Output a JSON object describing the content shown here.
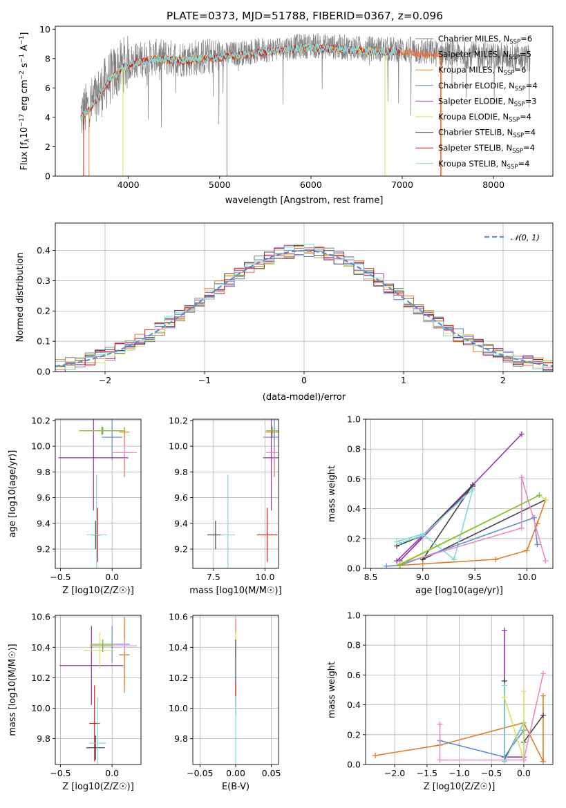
{
  "figure_title": "PLATE=0373, MJD=51788, FIBERID=0367, z=0.096",
  "colors": {
    "cm": "#7f7f7f",
    "sm": "#e96a60",
    "km": "#e07b21",
    "ce": "#5b8ccf",
    "se": "#9b30b0",
    "ke": "#d4e35e",
    "cs": "#444444",
    "ss": "#cc1a1a",
    "ks": "#7fd9d9",
    "pink": "#e88bc4",
    "green": "#7fc12a",
    "normal": "#5b8ccf"
  },
  "chart_data": [
    {
      "id": "spectrum",
      "type": "line",
      "xlabel": "wavelength [Angstrom, rest frame]",
      "ylabel": "Flux [f",
      "ylabel_parts": [
        "Flux [f",
        "λ",
        "10",
        "−17",
        " erg cm",
        "−2",
        " s",
        "−1",
        " A",
        "−1",
        "]"
      ],
      "xlim": [
        3200,
        8650
      ],
      "ylim": [
        0,
        10.2
      ],
      "xticks": [
        4000,
        5000,
        6000,
        7000,
        8000
      ],
      "yticks": [
        0,
        2,
        4,
        6,
        8,
        10
      ],
      "legend_position": "right",
      "legend": [
        {
          "pre": "Chabrier MILES, N",
          "sub": "SSP",
          "post": "=6",
          "color": "cm"
        },
        {
          "pre": "Salpeter MILES, N",
          "sub": "SSP",
          "post": "=5",
          "color": "sm"
        },
        {
          "pre": "Kroupa MILES, N",
          "sub": "SSP",
          "post": "=6",
          "color": "km"
        },
        {
          "pre": "Chabrier ELODIE, N",
          "sub": "SSP",
          "post": "=4",
          "color": "ce"
        },
        {
          "pre": "Salpeter ELODIE, N",
          "sub": "SSP",
          "post": "=3",
          "color": "se"
        },
        {
          "pre": "Kroupa ELODIE, N",
          "sub": "SSP",
          "post": "=4",
          "color": "ke"
        },
        {
          "pre": "Chabrier STELIB, N",
          "sub": "SSP",
          "post": "=4",
          "color": "cs"
        },
        {
          "pre": "Salpeter STELIB, N",
          "sub": "SSP",
          "post": "=4",
          "color": "ss"
        },
        {
          "pre": "Kroupa STELIB, N",
          "sub": "SSP",
          "post": "=4",
          "color": "ks"
        }
      ],
      "continuum_x": [
        3480,
        3600,
        3800,
        3950,
        4100,
        4300,
        4600,
        5000,
        5500,
        6000,
        6500,
        7000,
        7500,
        8000,
        8400
      ],
      "continuum_y": [
        4.1,
        4.9,
        6.7,
        7.6,
        7.9,
        8.1,
        8.0,
        8.2,
        8.6,
        8.9,
        8.7,
        8.6,
        8.3,
        8.2,
        8.0
      ]
    },
    {
      "id": "residuals",
      "type": "histogram",
      "xlabel": "(data-model)/error",
      "ylabel": "Normed distribution",
      "xlim": [
        -2.5,
        2.5
      ],
      "ylim": [
        0,
        0.49
      ],
      "xticks": [
        -2,
        -1,
        0,
        1,
        2
      ],
      "xtick_labels": [
        "−2",
        "−1",
        "0",
        "1",
        "2"
      ],
      "yticks": [
        0.0,
        0.1,
        0.2,
        0.3,
        0.4
      ],
      "ytick_labels": [
        "0.0",
        "0.1",
        "0.2",
        "0.3",
        "0.4"
      ],
      "bin_width": 0.1,
      "legend_label": "𝒩(0, 1)",
      "legend_position": "top-right"
    },
    {
      "id": "age-vs-Z",
      "type": "scatter",
      "xlabel": "Z [log10(Z/Z☉)]",
      "ylabel": "age [log10(age/yr)]",
      "xlim": [
        -0.55,
        0.28
      ],
      "ylim": [
        9.05,
        10.21
      ],
      "xticks": [
        -0.5,
        0.0
      ],
      "xtick_labels": [
        "−0.5",
        "0.0"
      ],
      "yticks": [
        9.2,
        9.4,
        9.6,
        9.8,
        10.0,
        10.2
      ],
      "points": [
        {
          "color": "cm",
          "x": -0.09,
          "xerr": 0.19,
          "y": 10.12,
          "yerr": 0.03
        },
        {
          "color": "sm",
          "x": 0.12,
          "xerr": 0.08,
          "y": 9.95,
          "yerr": 0.19
        },
        {
          "color": "km",
          "x": 0.12,
          "xerr": 0.05,
          "y": 10.11,
          "yerr": 0.04
        },
        {
          "color": "ce",
          "x": 0.0,
          "xerr": 0.1,
          "y": 10.07,
          "yerr": 0.18
        },
        {
          "color": "se",
          "x": -0.18,
          "xerr": 0.34,
          "y": 9.91,
          "yerr": 0.41
        },
        {
          "color": "ke",
          "x": -0.1,
          "xerr": 0.16,
          "y": 10.12,
          "yerr": 0.04
        },
        {
          "color": "cs",
          "x": -0.16,
          "xerr": 0.04,
          "y": 9.31,
          "yerr": 0.11
        },
        {
          "color": "ss",
          "x": -0.14,
          "xerr": 0.03,
          "y": 9.31,
          "yerr": 0.21
        },
        {
          "color": "ks",
          "x": -0.15,
          "xerr": 0.1,
          "y": 9.31,
          "yerr": 0.47
        },
        {
          "color": "pink",
          "x": 0.12,
          "xerr": 0.12,
          "y": 9.95,
          "yerr": 0.05
        },
        {
          "color": "green",
          "x": -0.1,
          "xerr": 0.22,
          "y": 10.12,
          "yerr": 0.03
        }
      ]
    },
    {
      "id": "age-vs-mass",
      "type": "scatter",
      "xlabel": "mass [log10(M/M☉)]",
      "ylabel": "",
      "xlim": [
        6.5,
        10.65
      ],
      "ylim": [
        9.05,
        10.21
      ],
      "xticks": [
        7.5,
        10.0
      ],
      "xtick_labels": [
        "7.5",
        "10.0"
      ],
      "yticks": [
        9.2,
        9.4,
        9.6,
        9.8,
        10.0,
        10.2
      ],
      "points": [
        {
          "color": "cm",
          "x": 10.35,
          "xerr": 0.25,
          "y": 10.12,
          "yerr": 0.03
        },
        {
          "color": "sm",
          "x": 10.45,
          "xerr": 0.4,
          "y": 9.95,
          "yerr": 0.19
        },
        {
          "color": "km",
          "x": 10.35,
          "xerr": 0.35,
          "y": 10.11,
          "yerr": 0.04
        },
        {
          "color": "ce",
          "x": 10.45,
          "xerr": 0.55,
          "y": 10.07,
          "yerr": 0.18
        },
        {
          "color": "se",
          "x": 10.3,
          "xerr": 0.4,
          "y": 9.91,
          "yerr": 0.41
        },
        {
          "color": "ke",
          "x": 10.35,
          "xerr": 0.3,
          "y": 10.12,
          "yerr": 0.04
        },
        {
          "color": "cs",
          "x": 7.6,
          "xerr": 0.4,
          "y": 9.31,
          "yerr": 0.11
        },
        {
          "color": "ss",
          "x": 10.1,
          "xerr": 0.5,
          "y": 9.31,
          "yerr": 0.21
        },
        {
          "color": "ks",
          "x": 8.2,
          "xerr": 0.35,
          "y": 9.31,
          "yerr": 0.47
        },
        {
          "color": "pink",
          "x": 10.45,
          "xerr": 0.4,
          "y": 9.95,
          "yerr": 0.05
        },
        {
          "color": "green",
          "x": 10.35,
          "xerr": 0.3,
          "y": 10.12,
          "yerr": 0.03
        }
      ]
    },
    {
      "id": "weight-vs-age",
      "type": "line",
      "xlabel": "age [log10(age/yr)]",
      "ylabel": "mass weight",
      "xlim": [
        8.45,
        10.25
      ],
      "ylim": [
        0,
        1.0
      ],
      "xticks": [
        8.5,
        9.0,
        9.5,
        10.0
      ],
      "xtick_labels": [
        "8.5",
        "9.0",
        "9.5",
        "10.0"
      ],
      "yticks": [
        0.0,
        0.2,
        0.4,
        0.6,
        0.8,
        1.0
      ],
      "series": [
        {
          "color": "se",
          "x": [
            8.75,
            9.48,
            8.78,
            9.95
          ],
          "y": [
            0.05,
            0.55,
            0.05,
            0.9
          ]
        },
        {
          "color": "cs",
          "x": [
            8.75,
            9.0,
            9.48,
            9.0,
            10.18
          ],
          "y": [
            0.15,
            0.22,
            0.56,
            0.06,
            0.46
          ]
        },
        {
          "color": "ks",
          "x": [
            8.75,
            9.0,
            9.3,
            9.48,
            9.0,
            8.78
          ],
          "y": [
            0.18,
            0.23,
            0.06,
            0.53,
            0.22,
            0.17
          ]
        },
        {
          "color": "ce",
          "x": [
            8.65,
            8.78,
            10.07,
            10.1
          ],
          "y": [
            0.015,
            0.02,
            0.34,
            0.16
          ]
        },
        {
          "color": "km",
          "x": [
            8.78,
            9.0,
            9.7,
            10.0,
            10.1,
            10.18
          ],
          "y": [
            0.02,
            0.03,
            0.06,
            0.12,
            0.3,
            0.46
          ]
        },
        {
          "color": "pink",
          "x": [
            8.78,
            9.95,
            9.95,
            10.18
          ],
          "y": [
            0.03,
            0.27,
            0.61,
            0.05
          ]
        },
        {
          "color": "ke",
          "x": [
            8.78,
            10.12,
            10.18
          ],
          "y": [
            0.03,
            0.49,
            0.46
          ]
        },
        {
          "color": "green",
          "x": [
            8.78,
            10.12
          ],
          "y": [
            0.025,
            0.49
          ]
        }
      ]
    },
    {
      "id": "mass-vs-Z",
      "type": "scatter",
      "xlabel": "Z [log10(Z/Z☉)]",
      "ylabel": "mass [log10(M/M☉)]",
      "xlim": [
        -0.55,
        0.28
      ],
      "ylim": [
        9.63,
        10.61
      ],
      "xticks": [
        -0.5,
        0.0
      ],
      "xtick_labels": [
        "−0.5",
        "0.0"
      ],
      "yticks": [
        9.8,
        10.0,
        10.2,
        10.4,
        10.6
      ],
      "points": [
        {
          "color": "cm",
          "x": -0.09,
          "xerr": 0.12,
          "y": 10.41,
          "yerr": 0.04
        },
        {
          "color": "sm",
          "x": 0.12,
          "xerr": 0.05,
          "y": 10.35,
          "yerr": 0.21
        },
        {
          "color": "km",
          "x": 0.12,
          "xerr": 0.05,
          "y": 10.35,
          "yerr": 0.25
        },
        {
          "color": "ce",
          "x": 0.0,
          "xerr": 0.17,
          "y": 10.42,
          "yerr": 0.12
        },
        {
          "color": "se",
          "x": -0.2,
          "xerr": 0.31,
          "y": 10.28,
          "yerr": 0.26
        },
        {
          "color": "ke",
          "x": -0.12,
          "xerr": 0.15,
          "y": 10.38,
          "yerr": 0.12
        },
        {
          "color": "cs",
          "x": -0.16,
          "xerr": 0.09,
          "y": 9.74,
          "yerr": 0.08
        },
        {
          "color": "ss",
          "x": -0.17,
          "xerr": 0.05,
          "y": 9.9,
          "yerr": 0.25
        },
        {
          "color": "ks",
          "x": -0.14,
          "xerr": 0.08,
          "y": 9.77,
          "yerr": 0.3
        },
        {
          "color": "pink",
          "x": 0.12,
          "xerr": 0.12,
          "y": 10.41,
          "yerr": 0.04
        },
        {
          "color": "green",
          "x": -0.09,
          "xerr": 0.12,
          "y": 10.42,
          "yerr": 0.03
        }
      ]
    },
    {
      "id": "mass-vs-EBV",
      "type": "scatter",
      "xlabel": "E(B-V)",
      "ylabel": "",
      "xlim": [
        -0.06,
        0.06
      ],
      "ylim": [
        9.63,
        10.61
      ],
      "xticks": [
        -0.05,
        0.0,
        0.05
      ],
      "xtick_labels": [
        "−0.05",
        "0.00",
        "0.05"
      ],
      "yticks": [
        9.8,
        10.0,
        10.2,
        10.4,
        10.6
      ],
      "points": [
        {
          "color": "sm",
          "x": 0.0,
          "xerr": 0.0,
          "y": 10.47,
          "yerr": 0.12
        },
        {
          "color": "ke",
          "x": 0.0,
          "xerr": 0.0,
          "y": 10.3,
          "yerr": 0.2
        },
        {
          "color": "cs",
          "x": 0.0,
          "xerr": 0.0,
          "y": 10.2,
          "yerr": 0.25
        },
        {
          "color": "ss",
          "x": 0.0,
          "xerr": 0.0,
          "y": 10.1,
          "yerr": 0.07
        },
        {
          "color": "ks",
          "x": 0.0,
          "xerr": 0.0,
          "y": 9.86,
          "yerr": 0.22
        }
      ]
    },
    {
      "id": "weight-vs-Z",
      "type": "line",
      "xlabel": "Z [log10(Z/Z☉)]",
      "ylabel": "mass weight",
      "xlim": [
        -2.45,
        0.45
      ],
      "ylim": [
        0,
        1.0
      ],
      "xticks": [
        -2.0,
        -1.5,
        -1.0,
        -0.5,
        0.0
      ],
      "xtick_labels": [
        "−2.0",
        "−1.5",
        "−1.0",
        "−0.5",
        "0.0"
      ],
      "yticks": [
        0.0,
        0.2,
        0.4,
        0.6,
        0.8,
        1.0
      ],
      "series": [
        {
          "color": "km",
          "x": [
            -2.3,
            -1.3,
            0.0,
            0.3,
            0.3
          ],
          "y": [
            0.06,
            0.13,
            0.28,
            0.02,
            0.46
          ]
        },
        {
          "color": "ce",
          "x": [
            -1.3,
            -0.3,
            0.0,
            0.0
          ],
          "y": [
            0.16,
            0.05,
            0.23,
            0.03
          ]
        },
        {
          "color": "se",
          "x": [
            -0.3,
            -0.3,
            0.0
          ],
          "y": [
            0.9,
            0.05,
            0.05
          ]
        },
        {
          "color": "cs",
          "x": [
            -0.3,
            -0.3,
            0.0,
            0.0,
            0.3
          ],
          "y": [
            0.56,
            0.03,
            0.28,
            0.15,
            0.33
          ]
        },
        {
          "color": "ks",
          "x": [
            -0.3,
            -0.3,
            0.0
          ],
          "y": [
            0.53,
            0.02,
            0.28
          ]
        },
        {
          "color": "ke",
          "x": [
            -0.3,
            0.0,
            0.0
          ],
          "y": [
            0.45,
            0.03,
            0.49
          ]
        },
        {
          "color": "pink",
          "x": [
            -1.3,
            -1.3,
            0.0,
            0.3
          ],
          "y": [
            0.27,
            0.03,
            0.03,
            0.61
          ]
        }
      ]
    }
  ]
}
